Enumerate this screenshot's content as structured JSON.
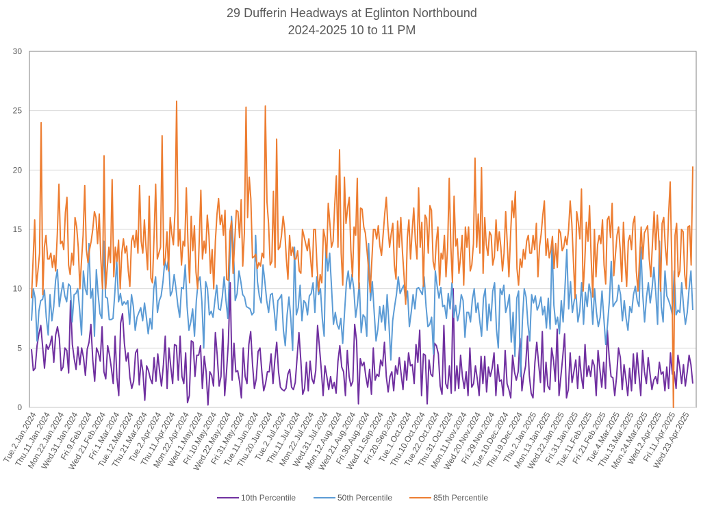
{
  "chart_data": {
    "type": "line",
    "title": "29 Dufferin Headways at Eglinton Northbound",
    "subtitle": "2024-2025 10 to 11 PM",
    "xlabel": "",
    "ylabel": "",
    "ylim": [
      0,
      30
    ],
    "yticks": [
      0,
      5,
      10,
      15,
      20,
      25,
      30
    ],
    "grid": true,
    "legend_position": "bottom",
    "tick_labels": [
      "Tue.2.Jan.2024",
      "Thu.11.Jan.2024",
      "Mon.22.Jan.2024",
      "Wed.31.Jan.2024",
      "Fri.9.Feb.2024",
      "Wed.21.Feb.2024",
      "Fri.1.Mar.2024",
      "Tue.12.Mar.2024",
      "Thu.21.Mar.2024",
      "Tue.2.Apr.2024",
      "Thu.11.Apr.2024",
      "Mon.22.Apr.2024",
      "Wed.1.May.2024",
      "Fri.10.May.2024",
      "Wed.22.May.2024",
      "Fri.31.May.2024",
      "Tue.11.Jun.2024",
      "Thu.20.Jun.2024",
      "Tue.2.Jul.2024",
      "Thu.11.Jul.2024",
      "Mon.22.Jul.2024",
      "Wed.31.Jul.2024",
      "Mon.12.Aug.2024",
      "Wed.21.Aug.2024",
      "Fri.30.Aug.2024",
      "Wed.11.Sep.2024",
      "Fri.20.Sep.2024",
      "Tue.1.Oct.2024",
      "Thu.10.Oct.2024",
      "Tue.22.Oct.2024",
      "Thu.31.Oct.2024",
      "Mon.11.Nov.2024",
      "Wed.20.Nov.2024",
      "Fri.29.Nov.2024",
      "Tue.10.Dec.2024",
      "Thu.19.Dec.2024",
      "Thu.2.Jan.2025",
      "Mon.13.Jan.2025",
      "Wed.22.Jan.2025",
      "Fri.31.Jan.2025",
      "Tue.11.Feb.2025",
      "Fri.21.Feb.2025",
      "Tue.4.Mar.2025",
      "Thu.13.Mar.2025",
      "Mon.24.Mar.2025",
      "Wed.2.Apr.2025",
      "Fri.11.Apr.2025",
      "Wed.23.Apr.2025"
    ],
    "series": [
      {
        "name": "10th Percentile",
        "color": "#7030A0",
        "values": [
          4.9,
          3.1,
          3.3,
          5.2,
          6.2,
          6.9,
          5.1,
          3.3,
          5.3,
          4.9,
          5.3,
          6.0,
          3.8,
          6.1,
          6.8,
          5.8,
          3.1,
          3.4,
          5.0,
          4.8,
          2.9,
          9.0,
          5.3,
          4.1,
          3.2,
          5.1,
          3.6,
          5.0,
          4.2,
          2.7,
          4.9,
          5.5,
          7.0,
          4.0,
          2.2,
          5.0,
          4.6,
          3.9,
          6.8,
          3.0,
          2.4,
          5.2,
          4.4,
          3.3,
          2.0,
          6.0,
          2.5,
          1.0,
          7.1,
          7.9,
          5.4,
          3.9,
          4.6,
          2.5,
          1.6,
          2.2,
          4.6,
          4.9,
          1.9,
          4.0,
          3.0,
          0.6,
          3.5,
          3.1,
          2.4,
          2.0,
          4.2,
          2.2,
          4.5,
          3.0,
          1.8,
          3.6,
          6.0,
          1.6,
          5.0,
          3.4,
          2.0,
          5.3,
          5.2,
          2.3,
          6.0,
          2.6,
          2.0,
          4.6,
          0.4,
          1.0,
          5.6,
          5.5,
          2.6,
          4.4,
          4.4,
          5.2,
          1.6,
          4.3,
          3.0,
          0.2,
          3.0,
          2.7,
          1.8,
          6.3,
          4.4,
          1.8,
          2.6,
          6.6,
          1.0,
          3.0,
          5.5,
          10.5,
          2.3,
          5.4,
          3.0,
          3.1,
          2.2,
          0.8,
          5.0,
          2.6,
          2.0,
          5.3,
          6.4,
          3.6,
          1.6,
          2.4,
          4.7,
          5.0,
          3.0,
          1.4,
          2.0,
          3.0,
          3.0,
          4.5,
          2.0,
          4.0,
          5.5,
          3.0,
          1.7,
          1.5,
          1.4,
          1.6,
          2.8,
          3.2,
          1.7,
          1.5,
          2.1,
          4.2,
          6.3,
          3.9,
          1.1,
          1.6,
          3.8,
          1.4,
          3.9,
          2.4,
          2.0,
          3.1,
          6.9,
          5.1,
          3.2,
          1.0,
          3.5,
          2.6,
          1.5,
          2.6,
          1.6,
          2.1,
          1.2,
          3.9,
          5.2,
          3.4,
          3.0,
          1.0,
          4.8,
          2.6,
          1.8,
          2.2,
          7.0,
          5.6,
          0.3,
          4.1,
          3.5,
          3.8,
          2.6,
          1.7,
          3.2,
          1.1,
          5.0,
          2.3,
          2.8,
          2.6,
          4.0,
          3.5,
          5.5,
          2.6,
          1.3,
          2.6,
          3.0,
          1.4,
          3.5,
          2.8,
          4.2,
          2.8,
          1.5,
          3.9,
          2.3,
          4.6,
          3.5,
          3.6,
          2.0,
          5.3,
          3.8,
          6.5,
          1.0,
          4.5,
          4.4,
          0.3,
          4.0,
          2.8,
          2.6,
          5.4,
          5.2,
          4.5,
          1.8,
          1.1,
          6.9,
          2.0,
          1.6,
          3.5,
          1.2,
          10.0,
          1.4,
          3.5,
          1.6,
          4.4,
          2.6,
          1.6,
          3.0,
          1.0,
          5.0,
          1.7,
          2.0,
          3.5,
          2.4,
          1.0,
          4.3,
          2.0,
          4.3,
          1.3,
          3.4,
          2.6,
          3.3,
          4.6,
          1.0,
          3.6,
          2.2,
          2.3,
          1.0,
          4.8,
          2.0,
          1.5,
          0.8,
          4.4,
          3.0,
          2.3,
          3.0,
          5.8,
          1.4,
          2.7,
          3.5,
          6.0,
          2.7,
          1.2,
          0.8,
          3.8,
          5.5,
          3.7,
          2.1,
          6.4,
          1.3,
          3.8,
          1.8,
          1.5,
          5.0,
          4.0,
          2.2,
          6.6,
          1.0,
          2.6,
          4.3,
          6.2,
          0.8,
          1.5,
          4.6,
          2.1,
          3.0,
          4.0,
          1.6,
          4.3,
          2.6,
          1.6,
          5.3,
          2.6,
          3.5,
          2.6,
          4.0,
          3.5,
          1.0,
          4.8,
          3.2,
          1.7,
          3.8,
          1.6,
          6.5,
          4.2,
          2.6,
          2.5,
          1.0,
          2.6,
          5.0,
          4.2,
          1.5,
          3.6,
          2.4,
          1.0,
          3.3,
          1.4,
          4.5,
          2.0,
          4.6,
          2.8,
          1.0,
          4.8,
          3.0,
          2.0,
          4.2,
          2.8,
          1.5,
          2.3,
          2.6,
          2.0,
          3.8,
          2.8,
          3.0,
          1.4,
          3.4,
          1.6,
          4.6,
          2.8,
          3.0,
          1.6,
          4.4,
          3.4,
          2.0,
          3.6,
          1.8,
          3.0,
          4.4,
          3.6,
          2.0
        ]
      },
      {
        "name": "50th Percentile",
        "color": "#5B9BD5",
        "values": [
          7.3,
          10.0,
          9.2,
          5.6,
          8.1,
          9.0,
          9.1,
          9.9,
          7.6,
          6.1,
          9.5,
          7.3,
          8.5,
          10.7,
          11.6,
          8.5,
          9.6,
          10.5,
          9.4,
          8.9,
          10.4,
          10.2,
          7.2,
          9.5,
          9.6,
          10.0,
          8.2,
          6.1,
          11.5,
          10.0,
          9.5,
          13.8,
          9.2,
          10.0,
          6.0,
          11.6,
          9.5,
          7.9,
          7.5,
          14.0,
          9.3,
          9.2,
          7.4,
          7.4,
          7.5,
          9.7,
          12.4,
          8.9,
          9.6,
          8.6,
          8.9,
          8.7,
          9.0,
          7.0,
          9.5,
          8.5,
          6.5,
          7.6,
          8.0,
          8.4,
          7.3,
          8.8,
          7.6,
          6.2,
          7.5,
          6.6,
          10.0,
          11.0,
          8.0,
          9.0,
          9.4,
          10.6,
          12.4,
          11.6,
          12.6,
          9.4,
          9.8,
          11.2,
          10.0,
          8.6,
          7.6,
          10.1,
          10.0,
          12.0,
          8.5,
          6.5,
          7.2,
          8.3,
          6.0,
          9.0,
          10.6,
          11.0,
          8.9,
          5.0,
          10.6,
          10.0,
          7.8,
          8.1,
          7.6,
          9.0,
          10.3,
          8.3,
          8.2,
          9.3,
          11.0,
          9.0,
          7.5,
          12.0,
          16.1,
          13.5,
          9.0,
          9.6,
          11.5,
          10.6,
          9.5,
          9.3,
          8.5,
          8.4,
          8.3,
          7.8,
          8.0,
          14.5,
          10.6,
          9.4,
          8.8,
          12.0,
          10.6,
          9.0,
          8.0,
          9.5,
          9.6,
          8.2,
          6.5,
          9.0,
          9.2,
          9.5,
          6.5,
          5.2,
          7.8,
          9.3,
          7.5,
          4.8,
          13.5,
          7.8,
          8.4,
          10.3,
          7.3,
          9.0,
          8.8,
          7.8,
          9.4,
          9.6,
          10.5,
          8.0,
          11.0,
          9.5,
          10.0,
          7.5,
          6.0,
          13.6,
          11.5,
          13.0,
          10.0,
          7.0,
          8.0,
          7.0,
          6.6,
          7.5,
          5.4,
          8.0,
          10.5,
          11.5,
          10.0,
          11.2,
          10.0,
          7.6,
          8.7,
          10.5,
          6.3,
          7.8,
          7.6,
          6.0,
          13.8,
          9.0,
          10.6,
          8.0,
          5.6,
          6.6,
          8.5,
          7.2,
          8.6,
          6.5,
          9.5,
          7.0,
          4.0,
          7.3,
          8.5,
          9.5,
          11.0,
          9.6,
          10.0,
          10.3,
          9.0,
          9.8,
          6.8,
          8.0,
          9.5,
          8.3,
          10.0,
          10.1,
          9.8,
          9.5,
          11.0,
          8.5,
          6.8,
          7.0,
          7.6,
          4.5,
          11.5,
          10.2,
          9.2,
          10.1,
          8.5,
          8.6,
          7.5,
          9.6,
          8.3,
          10.5,
          7.6,
          8.6,
          7.3,
          8.0,
          9.5,
          9.0,
          5.9,
          8.0,
          8.0,
          7.2,
          9.1,
          10.0,
          8.0,
          8.8,
          7.3,
          6.0,
          9.2,
          10.0,
          6.5,
          8.7,
          7.3,
          9.8,
          10.5,
          6.6,
          5.0,
          10.0,
          9.5,
          10.3,
          8.0,
          8.6,
          9.5,
          5.5,
          8.0,
          4.3,
          9.2,
          9.8,
          2.6,
          7.3,
          10.0,
          9.3,
          7.0,
          5.6,
          9.5,
          8.8,
          9.4,
          8.2,
          8.6,
          9.3,
          7.8,
          8.5,
          6.7,
          9.2,
          6.6,
          13.8,
          8.6,
          7.0,
          7.6,
          6.2,
          9.0,
          7.2,
          10.1,
          13.3,
          8.3,
          10.6,
          8.0,
          9.0,
          9.5,
          7.2,
          8.1,
          10.5,
          7.0,
          9.7,
          8.5,
          10.4,
          9.6,
          7.0,
          10.0,
          8.0,
          6.8,
          7.6,
          9.8,
          7.5,
          5.3,
          7.0,
          9.0,
          12.3,
          8.5,
          8.8,
          9.0,
          10.3,
          9.5,
          7.3,
          9.0,
          7.5,
          6.5,
          8.5,
          8.0,
          9.5,
          10.2,
          9.0,
          8.5,
          13.5,
          9.5,
          7.2,
          9.3,
          10.5,
          8.8,
          10.0,
          11.8,
          9.7,
          7.0,
          14.0,
          8.5,
          7.2,
          11.5,
          9.4,
          9.0,
          8.5,
          7.8,
          11.5,
          7.8,
          8.2,
          8.0,
          10.5,
          8.5,
          7.0,
          8.0,
          10.0,
          11.5,
          8.2
        ]
      },
      {
        "name": "85th Percentile",
        "color": "#ED7D31",
        "values": [
          9.2,
          12.5,
          15.8,
          10.2,
          11.5,
          13.0,
          24.0,
          9.5,
          13.5,
          14.5,
          12.5,
          12.5,
          13.0,
          11.8,
          12.8,
          11.5,
          14.6,
          18.8,
          13.8,
          14.0,
          13.3,
          16.4,
          17.7,
          12.0,
          11.2,
          13.0,
          12.0,
          16.0,
          15.2,
          13.5,
          10.0,
          12.3,
          14.5,
          18.7,
          13.3,
          12.2,
          13.3,
          14.0,
          15.0,
          16.5,
          16.0,
          13.8,
          16.3,
          12.5,
          10.0,
          21.2,
          10.0,
          11.8,
          13.5,
          12.2,
          19.2,
          11.0,
          13.5,
          12.3,
          14.1,
          10.0,
          13.0,
          14.2,
          13.0,
          13.6,
          11.5,
          10.2,
          14.0,
          14.5,
          13.5,
          14.9,
          13.0,
          18.7,
          14.0,
          13.0,
          15.8,
          13.5,
          11.6,
          17.8,
          10.9,
          10.5,
          14.5,
          18.8,
          12.5,
          13.0,
          13.5,
          22.9,
          12.0,
          12.6,
          14.8,
          11.5,
          16.0,
          14.6,
          13.7,
          16.6,
          25.8,
          13.6,
          15.0,
          12.0,
          14.0,
          13.6,
          18.5,
          14.0,
          10.5,
          16.1,
          13.2,
          15.3,
          11.4,
          10.0,
          14.0,
          18.3,
          12.5,
          14.0,
          13.0,
          16.2,
          14.5,
          11.3,
          13.3,
          10.0,
          14.0,
          16.3,
          17.6,
          15.4,
          16.2,
          14.5,
          16.6,
          10.8,
          10.7,
          14.8,
          15.7,
          11.3,
          14.0,
          16.6,
          16.5,
          14.3,
          17.5,
          11.9,
          14.7,
          25.3,
          16.0,
          19.4,
          17.6,
          12.6,
          12.7,
          12.9,
          11.7,
          12.2,
          11.9,
          13.0,
          12.6,
          25.4,
          17.3,
          15.5,
          12.0,
          12.3,
          18.2,
          11.8,
          22.6,
          13.3,
          13.5,
          14.5,
          16.1,
          15.0,
          12.5,
          10.8,
          14.5,
          12.8,
          13.5,
          12.5,
          12.5,
          13.2,
          11.5,
          11.3,
          15.0,
          14.4,
          13.8,
          13.2,
          14.2,
          12.6,
          11.0,
          15.0,
          15.0,
          12.0,
          9.8,
          11.2,
          10.5,
          15.0,
          14.3,
          12.6,
          17.2,
          15.5,
          13.5,
          14.0,
          17.0,
          19.5,
          13.5,
          21.7,
          13.0,
          10.3,
          19.4,
          15.5,
          16.8,
          17.7,
          13.3,
          11.0,
          15.2,
          14.5,
          19.3,
          10.0,
          16.8,
          16.7,
          15.2,
          14.7,
          13.2,
          11.7,
          9.7,
          12.3,
          15.0,
          15.0,
          14.2,
          15.3,
          13.6,
          12.8,
          14.5,
          16.3,
          17.7,
          15.2,
          13.5,
          14.6,
          15.5,
          12.0,
          10.8,
          15.7,
          13.5,
          16.0,
          13.1,
          11.0,
          8.7,
          14.3,
          15.8,
          12.5,
          14.8,
          16.8,
          14.0,
          12.5,
          18.5,
          13.5,
          15.6,
          10.2,
          16.2,
          15.9,
          13.0,
          17.0,
          16.6,
          12.3,
          11.6,
          14.0,
          15.2,
          10.3,
          13.0,
          12.5,
          14.5,
          11.0,
          13.5,
          19.3,
          13.5,
          10.5,
          17.8,
          13.6,
          14.2,
          11.3,
          12.6,
          14.5,
          10.3,
          15.2,
          13.5,
          15.2,
          11.5,
          12.0,
          13.8,
          21.0,
          13.5,
          16.3,
          13.0,
          20.2,
          11.3,
          16.0,
          13.7,
          12.8,
          14.8,
          14.5,
          12.0,
          12.7,
          15.8,
          13.2,
          14.8,
          13.5,
          11.5,
          13.0,
          16.5,
          13.8,
          11.0,
          14.5,
          17.4,
          16.0,
          18.2,
          11.7,
          10.3,
          12.5,
          11.8,
          13.3,
          12.5,
          14.0,
          14.5,
          13.0,
          13.0,
          14.5,
          13.3,
          15.5,
          11.0,
          13.6,
          14.6,
          16.2,
          17.4,
          12.8,
          14.2,
          12.6,
          13.3,
          14.4,
          11.7,
          13.8,
          11.8,
          15.0,
          14.7,
          13.2,
          13.5,
          14.4,
          13.7,
          15.0,
          17.4,
          15.5,
          12.4,
          9.2,
          16.5,
          15.6,
          14.2,
          18.4,
          9.8,
          12.1,
          15.6,
          14.0,
          17.0,
          12.5,
          9.3,
          15.0,
          11.0,
          13.7,
          14.5,
          13.8,
          15.8,
          12.0,
          10.4,
          15.8,
          16.1,
          14.3,
          17.2,
          11.1,
          12.8,
          14.5,
          15.2,
          13.3,
          10.6,
          15.6,
          12.5,
          10.2,
          14.0,
          14.5,
          13.3,
          15.5,
          16.1,
          11.5,
          9.8,
          12.5,
          15.2,
          12.5,
          14.7,
          15.0,
          15.3,
          12.5,
          11.0,
          13.8,
          16.5,
          13.3,
          16.2,
          14.0,
          9.8,
          15.5,
          16.0,
          13.5,
          12.0,
          16.3,
          19.0,
          12.0,
          0.0,
          14.5,
          15.5,
          11.0,
          11.5,
          15.0,
          14.8,
          11.2,
          10.0,
          15.2,
          15.3,
          12.0,
          20.3
        ]
      }
    ]
  }
}
